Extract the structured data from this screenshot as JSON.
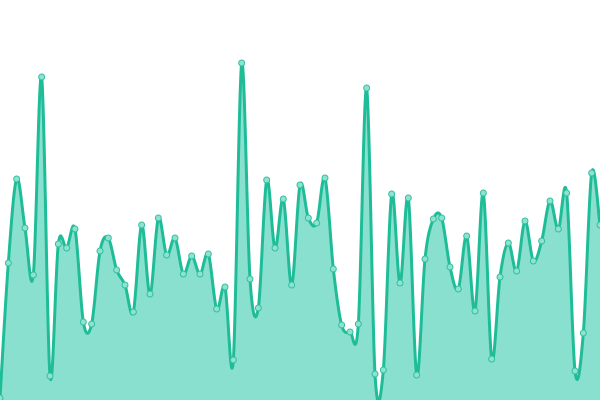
{
  "chart_data": {
    "type": "area",
    "title": "",
    "xlabel": "",
    "ylabel": "",
    "grid": false,
    "legend": "none",
    "markers": true,
    "smooth": true,
    "ylim": [
      0,
      400
    ],
    "x": [
      0,
      1,
      2,
      3,
      4,
      5,
      6,
      7,
      8,
      9,
      10,
      11,
      12,
      13,
      14,
      15,
      16,
      17,
      18,
      19,
      20,
      21,
      22,
      23,
      24,
      25,
      26,
      27,
      28,
      29,
      30,
      31,
      32,
      33,
      34,
      35,
      36,
      37,
      38,
      39,
      40,
      41,
      42,
      43,
      44,
      45,
      46,
      47,
      48,
      49,
      50,
      51,
      52,
      53,
      54,
      55,
      56,
      57,
      58,
      59,
      60,
      61,
      62,
      63,
      64,
      65,
      66,
      67,
      68,
      69,
      70,
      71,
      72
    ],
    "values": [
      2,
      137,
      221,
      172,
      125,
      323,
      24,
      156,
      152,
      171,
      78,
      76,
      149,
      162,
      130,
      115,
      88,
      175,
      106,
      182,
      145,
      162,
      126,
      144,
      126,
      146,
      91,
      113,
      40,
      337,
      121,
      92,
      220,
      152,
      201,
      115,
      215,
      182,
      177,
      222,
      131,
      75,
      68,
      76,
      312,
      26,
      30,
      206,
      117,
      202,
      25,
      141,
      181,
      182,
      133,
      111,
      164,
      89,
      207,
      41,
      123,
      157,
      129,
      179,
      139,
      159,
      199,
      171,
      207,
      29,
      67,
      227,
      175
    ],
    "colors": {
      "line": "#1fbc98",
      "fill": "#8ae0cf",
      "marker_fill": "#8fe2d0",
      "marker_stroke": "#2fc09f"
    }
  }
}
